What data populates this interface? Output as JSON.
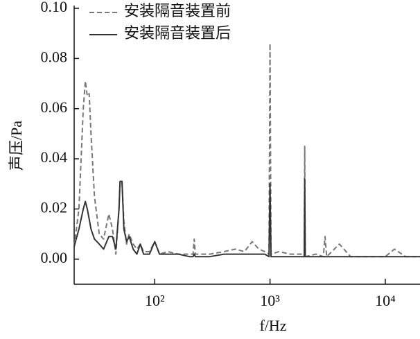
{
  "chart_data": {
    "type": "line",
    "x_label": "f/Hz",
    "y_label": "声压/Pa",
    "log_x": true,
    "legend": "upper-left",
    "xlim": [
      20,
      20000
    ],
    "xticks": [
      {
        "value": 100,
        "label": "10²"
      },
      {
        "value": 1000,
        "label": "10³"
      },
      {
        "value": 10000,
        "label": "10⁴"
      }
    ],
    "ylim": [
      -0.01,
      0.1
    ],
    "yticks": [
      {
        "value": 0,
        "label": "0.00"
      },
      {
        "value": 0.02,
        "label": "0.02"
      },
      {
        "value": 0.04,
        "label": "0.04"
      },
      {
        "value": 0.06,
        "label": "0.06"
      },
      {
        "value": 0.08,
        "label": "0.08"
      },
      {
        "value": 0.1,
        "label": "0.10"
      }
    ],
    "x": [
      20,
      22,
      24,
      25,
      26,
      27,
      28,
      30,
      33,
      36,
      40,
      43,
      46,
      49,
      50,
      52,
      54,
      57,
      60,
      65,
      70,
      75,
      80,
      90,
      100,
      110,
      130,
      160,
      200,
      215,
      220,
      225,
      300,
      400,
      500,
      600,
      700,
      800,
      900,
      980,
      1000,
      1020,
      1200,
      1500,
      1900,
      1980,
      2000,
      2020,
      2500,
      2900,
      3000,
      3100,
      4000,
      5000,
      7000,
      10000,
      12000,
      15000,
      20000
    ],
    "series": [
      {
        "name": "安装隔音装置前",
        "color": "#777777",
        "dash": true,
        "values": [
          0.005,
          0.02,
          0.06,
          0.071,
          0.065,
          0.066,
          0.05,
          0.025,
          0.01,
          0.008,
          0.018,
          0.012,
          0.002,
          0.02,
          0.031,
          0.031,
          0.015,
          0.006,
          0.01,
          0.006,
          0.004,
          0.006,
          0.003,
          0.003,
          0.007,
          0.002,
          0.003,
          0.002,
          0.002,
          0.002,
          0.008,
          0.002,
          0.002,
          0.003,
          0.004,
          0.003,
          0.007,
          0.004,
          0.003,
          0.002,
          0.086,
          0.002,
          0.003,
          0.002,
          0.002,
          0.001,
          0.045,
          0.001,
          0.002,
          0.001,
          0.009,
          0.001,
          0.006,
          0.001,
          0.001,
          0.001,
          0.004,
          0.001,
          0.001
        ]
      },
      {
        "name": "安装隔音装置后",
        "color": "#333333",
        "dash": false,
        "values": [
          0.005,
          0.012,
          0.02,
          0.023,
          0.02,
          0.016,
          0.012,
          0.008,
          0.006,
          0.004,
          0.009,
          0.009,
          0.004,
          0.02,
          0.031,
          0.031,
          0.012,
          0.007,
          0.009,
          0.004,
          0.002,
          0.006,
          0.002,
          0.002,
          0.007,
          0.002,
          0.002,
          0.002,
          0.001,
          0.001,
          0.002,
          0.001,
          0.001,
          0.002,
          0.002,
          0.002,
          0.002,
          0.002,
          0.002,
          0.001,
          0.03,
          0.001,
          0.001,
          0.001,
          0.001,
          0.001,
          0.032,
          0.001,
          0.001,
          0.001,
          0.001,
          0.001,
          0.001,
          0.001,
          0.001,
          0.001,
          0.001,
          0.001,
          0.001
        ]
      }
    ]
  }
}
